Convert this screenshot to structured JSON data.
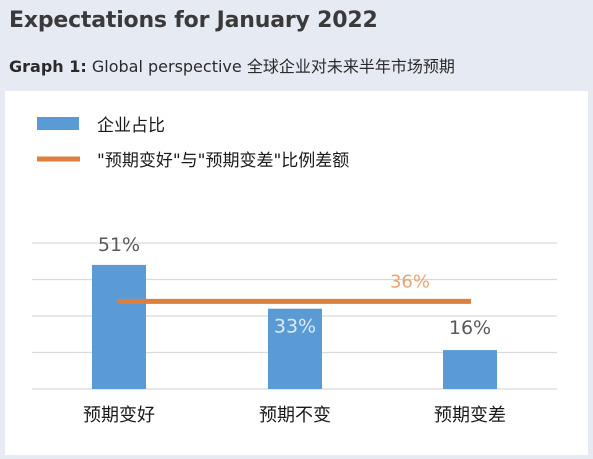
{
  "header": {
    "title": "Expectations for January 2022",
    "subtitle_lead": "Graph 1:",
    "subtitle_text": "Global perspective 全球企业对未来半年市场预期"
  },
  "colors": {
    "bar": "#5b9bd5",
    "line": "#dd7f3f",
    "bar_label_inside": "#dfe9f7",
    "line_label": "#e6a472",
    "grid": "#d9d9d9"
  },
  "chart_data": {
    "type": "bar",
    "categories": [
      "预期变好",
      "预期不变",
      "预期变差"
    ],
    "series": [
      {
        "name": "企业占比",
        "type": "bar",
        "values": [
          51,
          33,
          16
        ]
      },
      {
        "name": "\"预期变好\"与\"预期变差\"比例差额",
        "type": "line",
        "values": [
          36,
          36,
          36
        ]
      }
    ],
    "data_labels": [
      "51%",
      "33%",
      "16%"
    ],
    "line_label": "36%",
    "ylim": [
      0,
      60
    ],
    "grid": true,
    "legend_position": "top-left"
  }
}
